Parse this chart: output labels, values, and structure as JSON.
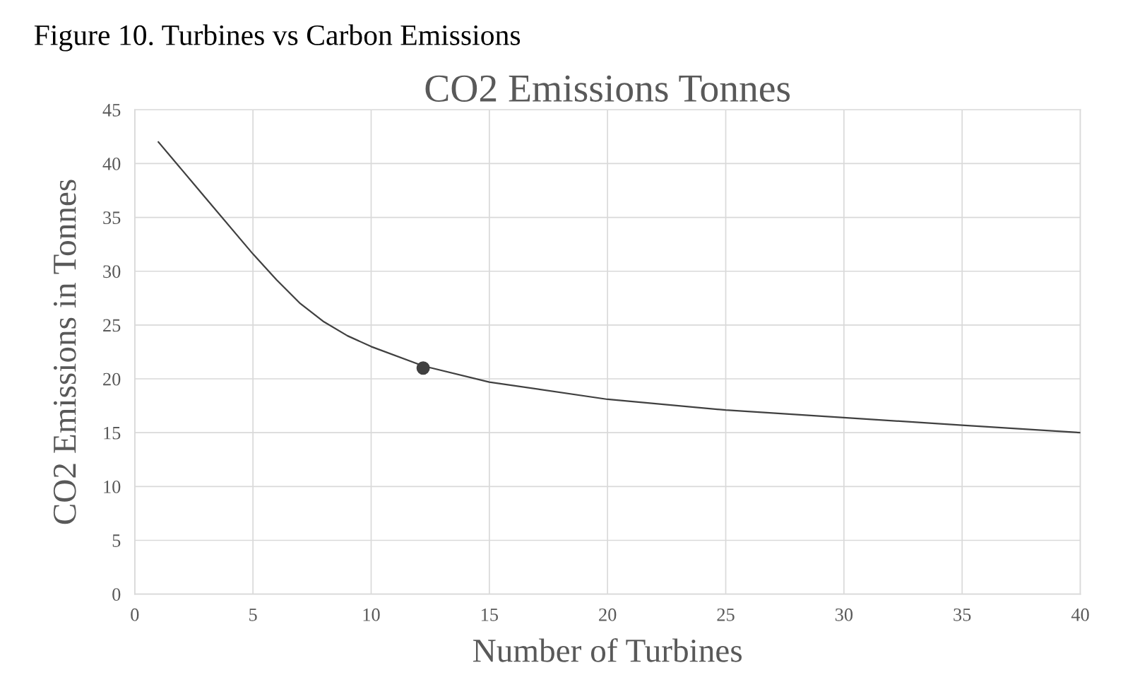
{
  "chart_data": {
    "type": "line",
    "title": "CO2 Emissions Tonnes",
    "xlabel": "Number of Turbines",
    "ylabel": "CO2 Emissions in Tonnes",
    "annotations": [
      "Figure 10. Turbines vs Carbon Emissions"
    ],
    "series": [
      {
        "color": "#404040",
        "x": [
          1,
          3,
          5,
          6,
          7,
          8,
          9,
          10,
          12.2,
          15,
          20,
          25,
          30,
          35,
          40
        ],
        "values": [
          42.0,
          36.8,
          31.6,
          29.2,
          27.0,
          25.3,
          24.0,
          23.0,
          21.2,
          19.7,
          18.1,
          17.1,
          16.4,
          15.7,
          15.0
        ]
      },
      {
        "type": "scatter",
        "color": "#404040",
        "x": [
          12.2
        ],
        "values": [
          21.0
        ],
        "marker": "circle"
      }
    ],
    "xlim": [
      0,
      40
    ],
    "xticks": [
      0,
      5,
      10,
      15,
      20,
      25,
      30,
      35,
      40
    ],
    "ylim": [
      0,
      45
    ],
    "yticks": [
      0,
      5,
      10,
      15,
      20,
      25,
      30,
      35,
      40,
      45
    ],
    "grid": true,
    "legend": false
  }
}
